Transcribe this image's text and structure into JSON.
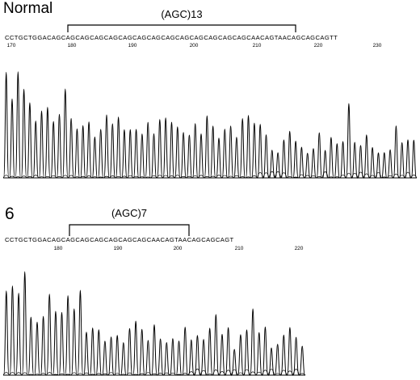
{
  "panels": [
    {
      "id": "normal",
      "label": "Normal",
      "repeat_label": "(AGC)13",
      "sequence": "CCTGCTGGACAGCAGCAGCAGCAGCAGCAGCAGCAGCAGCAGCAGCAGCAGCAACAGTAACAGCAGCAGTT",
      "sequence_start": 170,
      "positions": [
        "170",
        "180",
        "190",
        "200",
        "210",
        "220",
        "230"
      ]
    },
    {
      "id": "six",
      "label": "6",
      "repeat_label": "(AGC)7",
      "sequence": "CCTGCTGGACAGCAGCAGCAGCAGCAGCAGCAACAGTAACAGCAGCAGT",
      "sequence_start": 172,
      "positions": [
        "180",
        "190",
        "200",
        "210",
        "220"
      ]
    }
  ]
}
